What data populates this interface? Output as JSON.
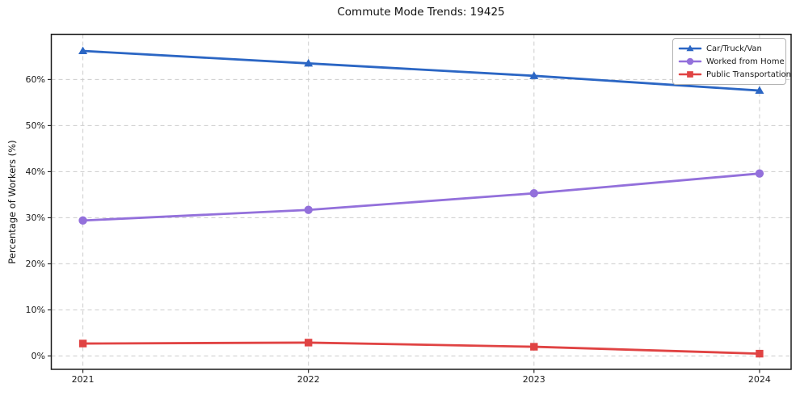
{
  "chart_data": {
    "type": "line",
    "title": "Commute Mode Trends: 19425",
    "xlabel": "",
    "ylabel": "Percentage of Workers (%)",
    "x": [
      2021,
      2022,
      2023,
      2024
    ],
    "x_tick_labels": [
      "2021",
      "2022",
      "2023",
      "2024"
    ],
    "y_ticks": [
      0,
      10,
      20,
      30,
      40,
      50,
      60
    ],
    "y_tick_labels": [
      "0%",
      "10%",
      "20%",
      "30%",
      "40%",
      "50%",
      "60%"
    ],
    "xlim": [
      2020.86,
      2024.14
    ],
    "ylim": [
      -2.9,
      69.8
    ],
    "grid": true,
    "grid_style": "dashed",
    "legend_position": "upper right",
    "series": [
      {
        "name": "Car/Truck/Van",
        "color": "#2b66c4",
        "marker": "triangle",
        "values": [
          66.2,
          63.5,
          60.8,
          57.6
        ]
      },
      {
        "name": "Worked from Home",
        "color": "#9370DB",
        "marker": "circle",
        "values": [
          29.4,
          31.7,
          35.3,
          39.6
        ]
      },
      {
        "name": "Public Transportation",
        "color": "#e04343",
        "marker": "square",
        "values": [
          2.7,
          2.9,
          2.0,
          0.5
        ]
      }
    ],
    "colors": {
      "grid": "#cccccc",
      "spine": "#1a1a1a",
      "background": "#ffffff"
    }
  }
}
